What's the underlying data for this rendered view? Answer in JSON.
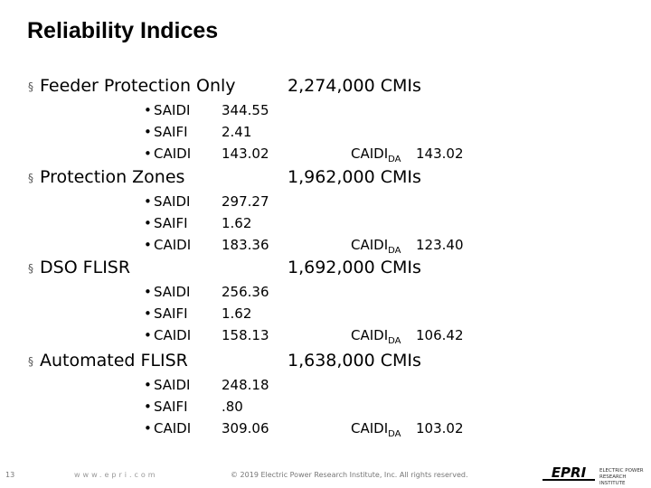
{
  "header": {
    "title": "Reliability Indices"
  },
  "sections": [
    {
      "name": "Feeder Protection Only",
      "cmis": "2,274,000 CMIs",
      "metrics": [
        {
          "label": "SAIDI",
          "value": "344.55"
        },
        {
          "label": "SAIFI",
          "value": "2.41"
        },
        {
          "label": "CAIDI",
          "value": "143.02"
        }
      ],
      "caidi_da": {
        "label": "CAIDI",
        "sub": "DA",
        "value": "143.02"
      }
    },
    {
      "name": "Protection Zones",
      "cmis": "1,962,000 CMIs",
      "metrics": [
        {
          "label": "SAIDI",
          "value": "297.27"
        },
        {
          "label": "SAIFI",
          "value": "1.62"
        },
        {
          "label": "CAIDI",
          "value": "183.36"
        }
      ],
      "caidi_da": {
        "label": "CAIDI",
        "sub": "DA",
        "value": "123.40"
      }
    },
    {
      "name": "DSO FLISR",
      "cmis": "1,692,000 CMIs",
      "metrics": [
        {
          "label": "SAIDI",
          "value": "256.36"
        },
        {
          "label": "SAIFI",
          "value": "1.62"
        },
        {
          "label": "CAIDI",
          "value": "158.13"
        }
      ],
      "caidi_da": {
        "label": "CAIDI",
        "sub": "DA",
        "value": "106.42"
      }
    },
    {
      "name": "Automated FLISR",
      "cmis": "1,638,000 CMIs",
      "metrics": [
        {
          "label": "SAIDI",
          "value": "248.18"
        },
        {
          "label": "SAIFI",
          "value": ".80"
        },
        {
          "label": "CAIDI",
          "value": "309.06"
        }
      ],
      "caidi_da": {
        "label": "CAIDI",
        "sub": "DA",
        "value": "103.02"
      }
    }
  ],
  "footer": {
    "page": "13",
    "website": "www.epri.com",
    "copyright": "© 2019 Electric Power Research Institute, Inc. All rights reserved.",
    "logo": "EPRI",
    "logo_text": "ELECTRIC POWER RESEARCH INSTITUTE"
  }
}
